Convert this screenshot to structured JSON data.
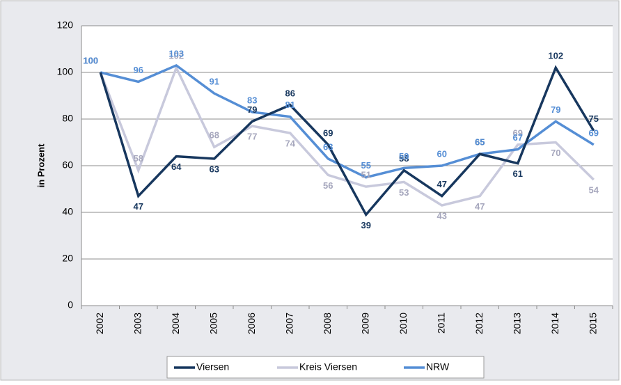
{
  "chart_data": {
    "type": "line",
    "y_label": "in Prozent",
    "categories": [
      "2002",
      "2003",
      "2004",
      "2005",
      "2006",
      "2007",
      "2008",
      "2009",
      "2010",
      "2011",
      "2012",
      "2013",
      "2014",
      "2015"
    ],
    "series": [
      {
        "name": "Viersen",
        "color": "#17375e",
        "values": [
          100,
          47,
          64,
          63,
          79,
          86,
          69,
          39,
          58,
          47,
          65,
          61,
          102,
          75
        ]
      },
      {
        "name": "Kreis Viersen",
        "color": "#c8c9dc",
        "values": [
          100,
          58,
          102,
          68,
          77,
          74,
          56,
          51,
          53,
          43,
          47,
          69,
          70,
          54
        ]
      },
      {
        "name": "NRW",
        "color": "#558ed5",
        "values": [
          100,
          96,
          103,
          91,
          83,
          81,
          63,
          55,
          59,
          60,
          65,
          67,
          79,
          69
        ]
      }
    ],
    "ylim": [
      0,
      120
    ],
    "yticks": [
      0,
      20,
      40,
      60,
      80,
      100,
      120
    ],
    "grid": true,
    "legend": "bottom"
  }
}
